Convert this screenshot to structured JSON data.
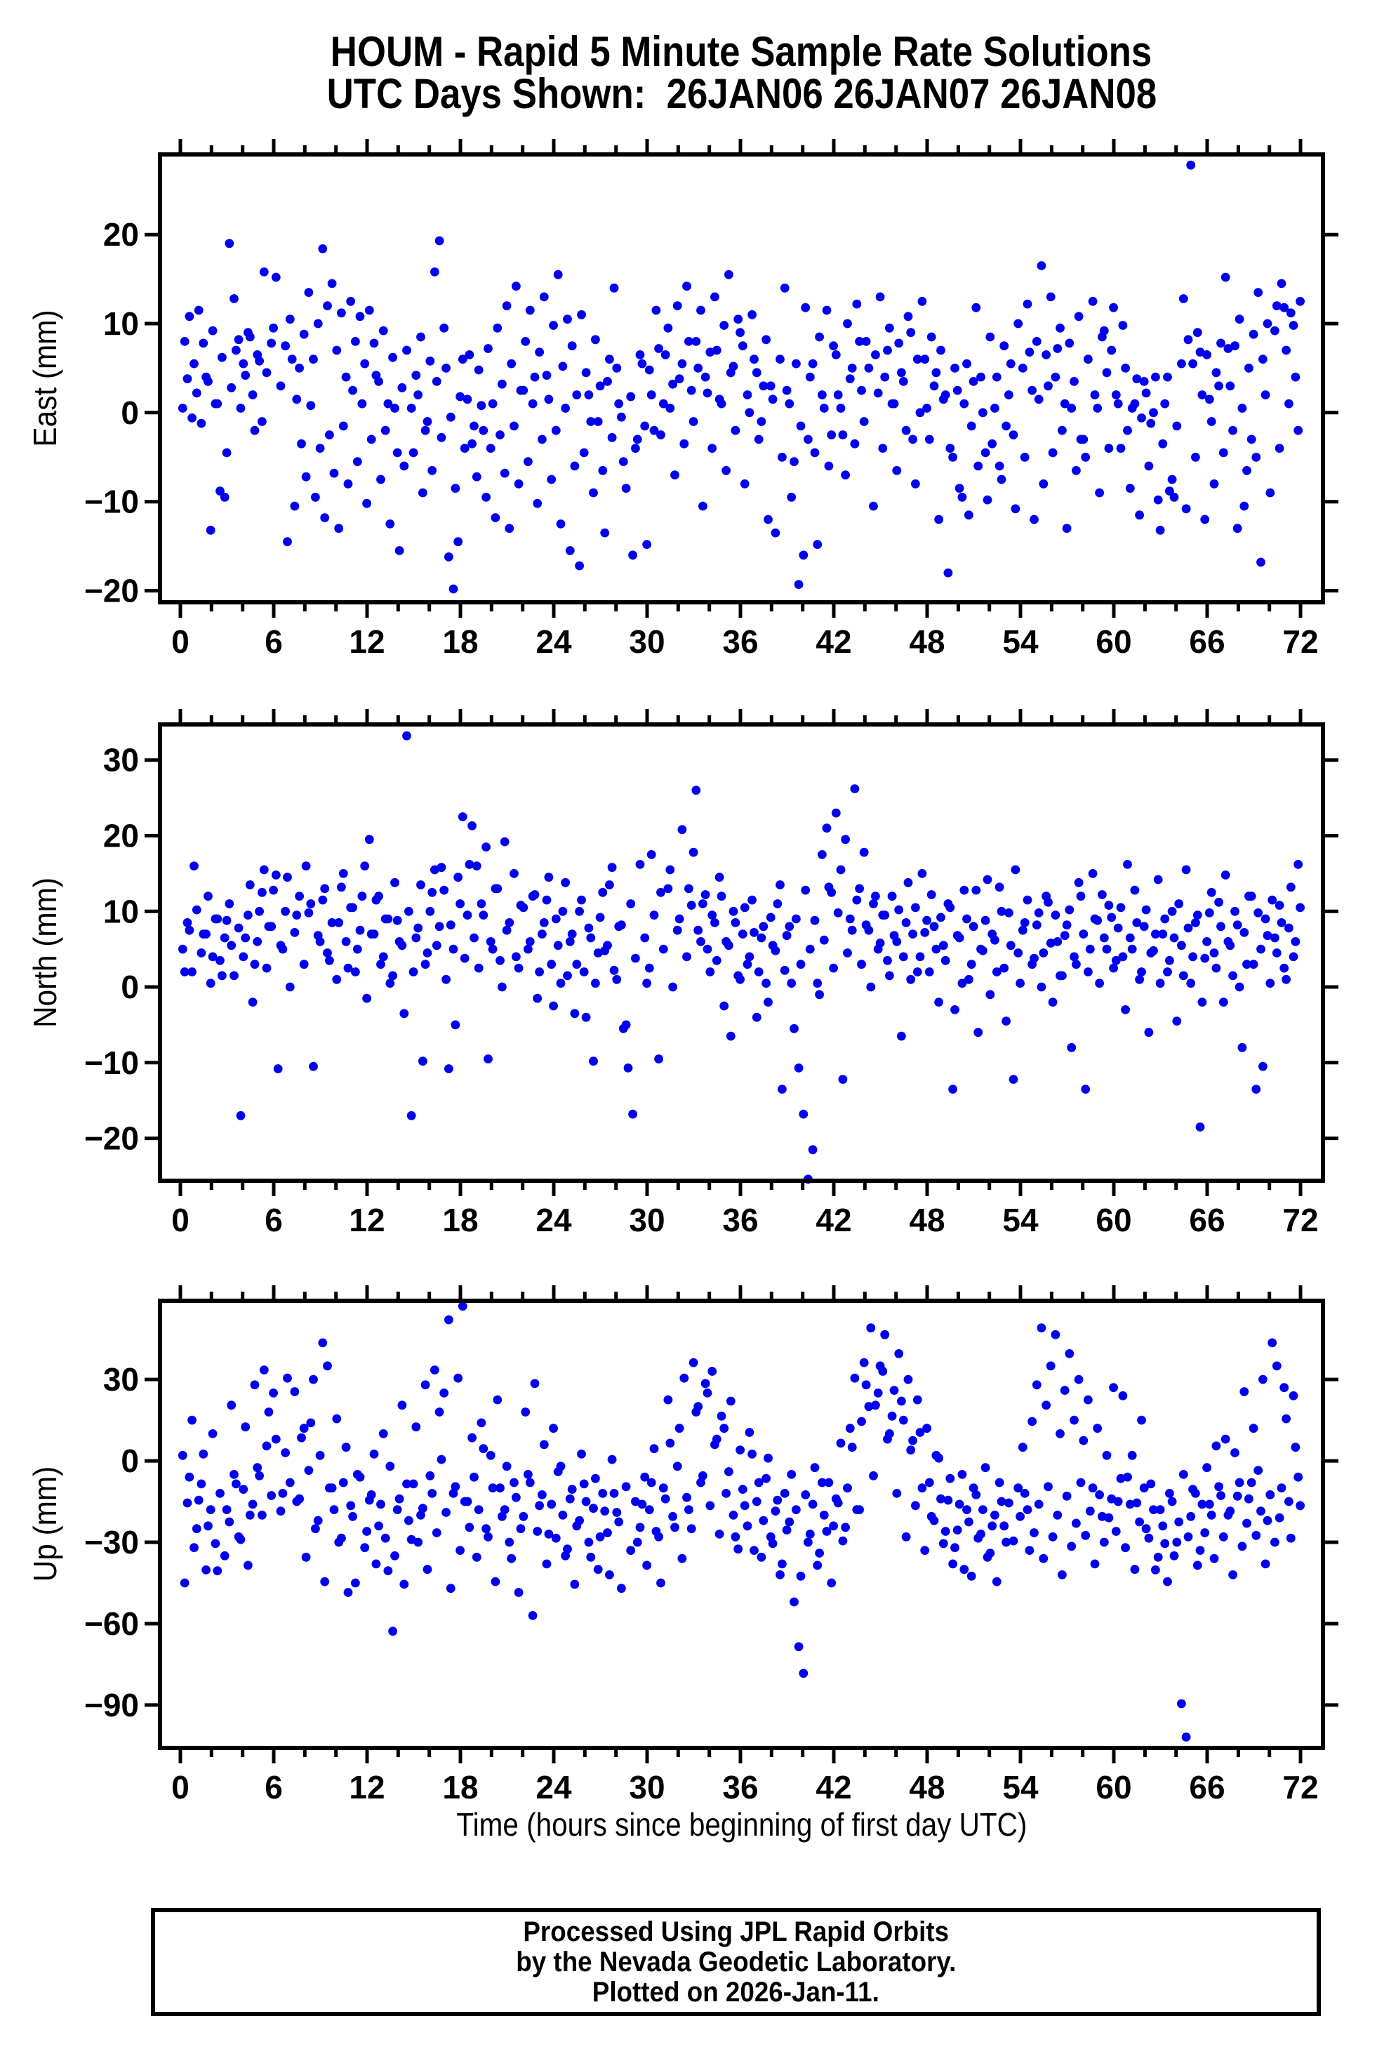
{
  "header": {
    "title_line1": "HOUM - Rapid 5 Minute Sample Rate Solutions",
    "title_line2": "UTC Days Shown:  26JAN06 26JAN07 26JAN08"
  },
  "xlabel": "Time (hours since beginning of first day UTC)",
  "footer": {
    "line1": "Processed Using JPL Rapid Orbits",
    "line2": "by the Nevada Geodetic Laboratory.",
    "line3": "Plotted on 2026-Jan-11."
  },
  "colors": {
    "marker": "#0000EE",
    "frame": "#000000",
    "background": "#FFFFFF"
  },
  "chart_data": {
    "type": "scatter",
    "station": "HOUM",
    "xlabel": "Time (hours since beginning of first day UTC)",
    "xaxis": {
      "lim": [
        0,
        72
      ],
      "major_ticks": [
        0,
        6,
        12,
        18,
        24,
        30,
        36,
        42,
        48,
        54,
        60,
        66,
        72
      ],
      "minor_step": 2
    },
    "time_hours": {
      "start": 0.15,
      "step": 0.3,
      "count": 240
    },
    "density_overlay": {
      "t_offset": 0.13,
      "index_shift": 37
    },
    "panels": [
      {
        "name": "East",
        "ylabel": "East (mm)",
        "ylim": [
          -21.3,
          29.0
        ],
        "yticks": [
          -20,
          -10,
          0,
          10,
          20
        ],
        "overlay_skip_abs_above": 16,
        "values": [
          0.5,
          3.8,
          -0.6,
          2.2,
          -1.2,
          4.0,
          -13.2,
          1.0,
          -8.8,
          -9.5,
          19.0,
          12.8,
          8.2,
          5.5,
          9.0,
          2.0,
          6.5,
          -1.0,
          4.5,
          7.8,
          15.2,
          3.0,
          7.5,
          10.5,
          -10.5,
          5.0,
          8.8,
          13.5,
          6.0,
          10.0,
          18.4,
          12.0,
          14.5,
          7.0,
          11.2,
          4.0,
          12.5,
          8.0,
          10.8,
          5.5,
          11.5,
          7.8,
          3.5,
          9.2,
          1.0,
          6.2,
          -4.5,
          2.8,
          7.0,
          0.5,
          4.2,
          8.5,
          -2.0,
          5.8,
          15.8,
          19.3,
          9.5,
          -16.2,
          -19.8,
          -14.5,
          6.0,
          1.5,
          -3.5,
          -7.2,
          0.8,
          -9.5,
          -4.0,
          -11.8,
          -2.5,
          -6.8,
          -13.0,
          -1.5,
          -8.0,
          2.5,
          -5.5,
          1.0,
          -10.2,
          -3.0,
          4.2,
          -7.5,
          -2.0,
          -12.5,
          0.5,
          -15.5,
          -6.0,
          -17.2,
          -4.5,
          2.0,
          -9.0,
          -1.0,
          -6.5,
          3.5,
          -2.8,
          5.0,
          -0.5,
          -8.5,
          1.8,
          -4.0,
          6.5,
          -1.5,
          4.8,
          -2.0,
          7.2,
          1.0,
          9.5,
          3.2,
          12.0,
          5.5,
          14.2,
          2.5,
          8.0,
          11.5,
          4.0,
          6.8,
          13.0,
          1.5,
          9.8,
          15.5,
          5.2,
          10.5,
          7.5,
          2.0,
          11.0,
          4.5,
          -1.0,
          8.2,
          3.0,
          -13.5,
          6.0,
          14.0,
          1.0,
          -5.5,
          -19.3,
          -16.0,
          -3.0,
          5.5,
          -14.8,
          2.0,
          11.5,
          -2.5,
          6.5,
          0.5,
          -7.0,
          3.8,
          -3.5,
          8.0,
          -1.0,
          5.0,
          -10.5,
          2.2,
          -4.0,
          7.0,
          1.0,
          -6.5,
          4.5,
          -2.0,
          9.0,
          -8.0,
          0.0,
          6.0,
          -3.0,
          3.0,
          -12.0,
          1.5,
          -18.0,
          -5.0,
          2.5,
          -9.5,
          5.5,
          -1.5,
          11.8,
          4.0,
          -4.5,
          8.5,
          0.5,
          -6.0,
          7.5,
          2.0,
          -2.5,
          10.0,
          5.0,
          12.2,
          2.5,
          8.0,
          16.5,
          6.5,
          13.0,
          4.0,
          9.5,
          1.0,
          7.8,
          3.5,
          10.8,
          -3.0,
          6.0,
          12.5,
          0.5,
          8.5,
          4.5,
          7.0,
          2.0,
          -4.0,
          5.0,
          -8.5,
          1.0,
          -11.5,
          3.5,
          -6.0,
          0.0,
          -9.8,
          -3.5,
          4.0,
          -7.5,
          -1.5,
          5.5,
          -10.8,
          27.8,
          -5.0,
          6.8,
          -12.0,
          1.5,
          -8.0,
          3.0,
          -4.5,
          7.2,
          -2.0,
          -13.0,
          0.5,
          -6.5,
          -3.0,
          -5.0,
          -16.8,
          2.0,
          -9.0,
          9.2,
          -4.0,
          11.8,
          1.0,
          9.8,
          -2.0
        ]
      },
      {
        "name": "North",
        "ylabel": "North (mm)",
        "ylim": [
          -25.6,
          34.7
        ],
        "yticks": [
          -20,
          -10,
          0,
          10,
          20,
          30
        ],
        "overlay_skip_abs_above": 18,
        "values": [
          5.0,
          8.5,
          2.0,
          10.2,
          4.5,
          7.0,
          0.5,
          9.0,
          3.5,
          6.5,
          11.0,
          1.5,
          7.8,
          4.0,
          9.5,
          -2.0,
          6.0,
          12.5,
          2.5,
          8.0,
          14.8,
          5.5,
          10.0,
          0.0,
          7.2,
          12.0,
          3.0,
          9.8,
          -10.5,
          6.8,
          11.5,
          4.5,
          8.5,
          1.0,
          13.2,
          6.0,
          10.5,
          2.0,
          7.5,
          16.0,
          19.5,
          7.0,
          12.0,
          4.0,
          9.0,
          1.5,
          8.8,
          5.5,
          33.2,
          -17.0,
          6.5,
          13.5,
          3.0,
          10.0,
          15.5,
          8.0,
          12.8,
          -10.8,
          5.0,
          14.5,
          22.5,
          9.5,
          21.3,
          16.0,
          11.0,
          18.5,
          6.0,
          13.0,
          3.5,
          19.2,
          8.5,
          15.0,
          2.5,
          10.5,
          5.0,
          12.0,
          -1.5,
          7.0,
          11.5,
          3.0,
          9.0,
          0.5,
          13.8,
          6.0,
          -3.5,
          10.0,
          2.0,
          7.8,
          -9.8,
          4.5,
          12.5,
          5.5,
          15.8,
          1.0,
          8.2,
          -5.0,
          11.0,
          3.8,
          16.2,
          6.5,
          2.5,
          9.5,
          -9.5,
          5.0,
          13.0,
          0.0,
          7.5,
          20.8,
          4.0,
          10.8,
          26.0,
          6.0,
          12.2,
          2.0,
          8.5,
          14.5,
          -2.5,
          5.5,
          10.0,
          1.5,
          7.0,
          3.0,
          11.5,
          -4.0,
          6.5,
          0.5,
          9.2,
          4.8,
          13.5,
          2.2,
          8.0,
          -5.5,
          -10.7,
          -16.8,
          -25.4,
          -21.5,
          0.5,
          17.5,
          21.0,
          12.5,
          23.0,
          15.5,
          19.5,
          9.0,
          26.2,
          13.0,
          17.8,
          7.5,
          11.0,
          5.0,
          9.5,
          3.5,
          12.0,
          6.0,
          -6.5,
          8.5,
          1.0,
          10.5,
          4.0,
          7.2,
          2.0,
          8.0,
          -2.0,
          5.5,
          11.0,
          -13.5,
          6.8,
          0.5,
          9.0,
          3.0,
          12.8,
          5.0,
          8.8,
          -1.0,
          6.2,
          13.2,
          2.5,
          9.8,
          -12.2,
          4.5,
          7.5,
          11.5,
          3.0,
          8.2,
          0.0,
          12.0,
          5.8,
          9.5,
          1.5,
          6.8,
          10.2,
          4.0,
          13.8,
          7.0,
          2.0,
          15.0,
          8.8,
          12.2,
          5.0,
          9.2,
          3.5,
          10.5,
          -3.0,
          6.5,
          12.8,
          1.0,
          8.0,
          -6.0,
          4.8,
          14.2,
          7.0,
          2.0,
          10.0,
          -4.5,
          5.5,
          15.5,
          0.5,
          8.5,
          -18.5,
          3.8,
          9.8,
          4.5,
          11.2,
          -2.0,
          6.0,
          1.5,
          8.2,
          -8.0,
          3.0,
          12.0,
          -13.5,
          5.0,
          9.0,
          0.5,
          6.5,
          10.8,
          2.5,
          7.8,
          4.0,
          16.2
        ]
      },
      {
        "name": "Up",
        "ylabel": "Up (mm)",
        "ylim": [
          -105.8,
          59.0
        ],
        "yticks": [
          -90,
          -60,
          -30,
          0,
          30
        ],
        "overlay_skip_abs_above": 50,
        "values": [
          2.0,
          -15.5,
          15.0,
          -25.0,
          -8.5,
          -40.2,
          -18.0,
          -30.5,
          -12.0,
          -35.0,
          -22.5,
          -5.0,
          -28.0,
          -10.5,
          -38.5,
          -16.0,
          -2.5,
          -20.0,
          5.5,
          -12.8,
          8.0,
          -18.5,
          3.0,
          -8.0,
          25.5,
          -14.0,
          12.0,
          -3.5,
          30.0,
          -22.0,
          43.5,
          35.0,
          -10.0,
          15.5,
          -28.5,
          5.0,
          -16.5,
          -45.0,
          -6.0,
          -32.0,
          -14.5,
          2.5,
          -24.0,
          10.0,
          -40.5,
          -62.8,
          -18.0,
          20.5,
          -8.5,
          -29.0,
          12.5,
          -20.0,
          28.0,
          -5.5,
          33.5,
          18.0,
          25.0,
          52.0,
          -12.0,
          30.5,
          57.0,
          -15.0,
          8.5,
          -35.5,
          14.0,
          -25.0,
          2.0,
          -44.5,
          -10.0,
          -18.0,
          -30.0,
          -8.0,
          -48.5,
          -20.5,
          -5.0,
          -57.0,
          -26.0,
          -12.5,
          -38.0,
          -16.0,
          -28.5,
          -2.0,
          -35.0,
          -14.0,
          -45.5,
          -22.0,
          -8.5,
          -30.0,
          -17.5,
          -40.0,
          -12.0,
          -26.5,
          0.5,
          -19.0,
          -47.0,
          -9.5,
          -33.0,
          -15.0,
          -24.5,
          -6.0,
          -18.0,
          4.5,
          -28.0,
          -10.0,
          22.5,
          -20.5,
          -2.0,
          -36.0,
          -13.5,
          -25.0,
          18.0,
          -8.0,
          28.5,
          -16.5,
          6.0,
          -27.0,
          12.0,
          -4.0,
          -20.0,
          -32.5,
          -10.5,
          -24.0,
          2.5,
          -15.0,
          -35.5,
          -6.5,
          -28.0,
          -18.5,
          -42.0,
          -12.0,
          -22.5,
          -52.0,
          -68.5,
          -78.3,
          -30.0,
          -16.0,
          -38.5,
          -8.0,
          -26.0,
          -45.0,
          -14.0,
          6.5,
          -24.5,
          12.0,
          30.5,
          -18.0,
          36.2,
          20.0,
          -5.5,
          25.0,
          33.0,
          8.0,
          16.5,
          -12.0,
          22.0,
          -28.0,
          4.0,
          -16.5,
          10.5,
          -33.0,
          -8.0,
          -22.0,
          1.0,
          -30.5,
          -14.5,
          -38.0,
          -25.5,
          -5.0,
          -18.0,
          -42.5,
          -12.5,
          -27.0,
          -2.5,
          -34.0,
          -20.0,
          -8.0,
          -24.0,
          -15.5,
          -29.5,
          -10.0,
          5.0,
          -18.0,
          14.5,
          28.0,
          49.0,
          20.5,
          35.0,
          46.5,
          10.0,
          26.0,
          39.5,
          15.0,
          30.0,
          7.5,
          22.5,
          -10.0,
          12.0,
          -20.5,
          2.0,
          -14.0,
          -26.0,
          -6.5,
          -32.0,
          -16.0,
          -40.0,
          -22.5,
          -10.0,
          -28.5,
          -18.0,
          -35.5,
          -24.0,
          -44.5,
          -15.0,
          -30.0,
          -89.5,
          -101.8,
          -20.5,
          -12.0,
          -33.0,
          -26.5,
          -16.0,
          -36.0,
          -9.5,
          -28.0,
          -20.0,
          -42.0,
          -13.0,
          -31.5,
          -23.0,
          -8.0,
          -27.5,
          -18.5,
          -38.0,
          -12.5,
          -30.0,
          -21.0,
          27.0,
          -15.0,
          24.0,
          -6.0
        ]
      }
    ]
  }
}
